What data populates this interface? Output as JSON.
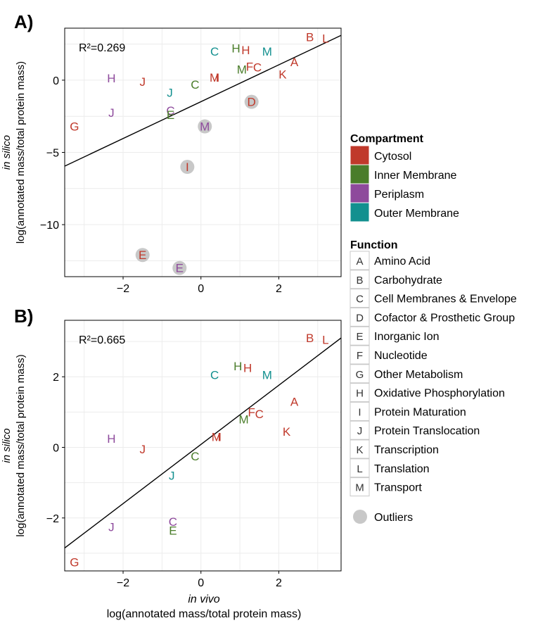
{
  "colors": {
    "Cytosol": "#c0392b",
    "Inner Membrane": "#4a7d2a",
    "Periplasm": "#8e4a9c",
    "Outer Membrane": "#13908f",
    "outlier": "#c8c8c8",
    "panel_bg": "#ffffff",
    "grid": "#ececec",
    "fit_line": "#000000"
  },
  "axes": {
    "x_label_italic": "in vivo",
    "x_label": "log(annotated mass/total protein mass)",
    "y_label_italic": "in silico",
    "y_label": "log(annotated mass/total protein mass)"
  },
  "legend": {
    "compartment_title": "Compartment",
    "compartments": [
      "Cytosol",
      "Inner Membrane",
      "Periplasm",
      "Outer Membrane"
    ],
    "function_title": "Function",
    "functions": [
      {
        "code": "A",
        "name": "Amino Acid"
      },
      {
        "code": "B",
        "name": "Carbohydrate"
      },
      {
        "code": "C",
        "name": "Cell Membranes & Envelope"
      },
      {
        "code": "D",
        "name": "Cofactor & Prosthetic Group"
      },
      {
        "code": "E",
        "name": "Inorganic Ion"
      },
      {
        "code": "F",
        "name": "Nucleotide"
      },
      {
        "code": "G",
        "name": "Other Metabolism"
      },
      {
        "code": "H",
        "name": "Oxidative Phosphorylation"
      },
      {
        "code": "I",
        "name": "Protein Maturation"
      },
      {
        "code": "J",
        "name": "Protein Translocation"
      },
      {
        "code": "K",
        "name": "Transcription"
      },
      {
        "code": "L",
        "name": "Translation"
      },
      {
        "code": "M",
        "name": "Transport"
      }
    ],
    "outlier_label": "Outliers"
  },
  "chart_data": [
    {
      "type": "scatter",
      "panel_label": "A)",
      "r2_label": "R²=0.269",
      "xlim": [
        -3.5,
        3.6
      ],
      "ylim": [
        -13.6,
        3.6
      ],
      "xticks": [
        -2,
        0,
        2
      ],
      "yticks": [
        0,
        -5,
        -10
      ],
      "fit_line": [
        [
          -3.5,
          -5.95
        ],
        [
          3.6,
          3.1
        ]
      ],
      "points": [
        {
          "label": "B",
          "compartment": "Cytosol",
          "x": 2.8,
          "y": 3.0,
          "outlier": false
        },
        {
          "label": "L",
          "compartment": "Cytosol",
          "x": 3.2,
          "y": 2.9,
          "outlier": false
        },
        {
          "label": "C",
          "compartment": "Outer Membrane",
          "x": 0.35,
          "y": 2.0,
          "outlier": false
        },
        {
          "label": "H",
          "compartment": "Inner Membrane",
          "x": 0.9,
          "y": 2.2,
          "outlier": false
        },
        {
          "label": "H",
          "compartment": "Cytosol",
          "x": 1.15,
          "y": 2.1,
          "outlier": false
        },
        {
          "label": "M",
          "compartment": "Outer Membrane",
          "x": 1.7,
          "y": 2.0,
          "outlier": false
        },
        {
          "label": "A",
          "compartment": "Cytosol",
          "x": 2.4,
          "y": 1.25,
          "outlier": false
        },
        {
          "label": "F",
          "compartment": "Cytosol",
          "x": 1.25,
          "y": 0.95,
          "outlier": false
        },
        {
          "label": "C",
          "compartment": "Cytosol",
          "x": 1.45,
          "y": 0.9,
          "outlier": false
        },
        {
          "label": "M",
          "compartment": "Inner Membrane",
          "x": 1.05,
          "y": 0.75,
          "outlier": false
        },
        {
          "label": "K",
          "compartment": "Cytosol",
          "x": 2.1,
          "y": 0.4,
          "outlier": false
        },
        {
          "label": "M",
          "compartment": "Cytosol",
          "x": 0.35,
          "y": 0.2,
          "outlier": false
        },
        {
          "label": "I",
          "compartment": "Cytosol",
          "x": 0.42,
          "y": 0.2,
          "outlier": false
        },
        {
          "label": "H",
          "compartment": "Periplasm",
          "x": -2.3,
          "y": 0.15,
          "outlier": false
        },
        {
          "label": "J",
          "compartment": "Cytosol",
          "x": -1.5,
          "y": -0.1,
          "outlier": false
        },
        {
          "label": "C",
          "compartment": "Inner Membrane",
          "x": -0.15,
          "y": -0.3,
          "outlier": false
        },
        {
          "label": "J",
          "compartment": "Outer Membrane",
          "x": -0.8,
          "y": -0.85,
          "outlier": false
        },
        {
          "label": "D",
          "compartment": "Cytosol",
          "x": 1.3,
          "y": -1.5,
          "outlier": true
        },
        {
          "label": "C",
          "compartment": "Periplasm",
          "x": -0.78,
          "y": -2.1,
          "outlier": false
        },
        {
          "label": "E",
          "compartment": "Inner Membrane",
          "x": -0.78,
          "y": -2.4,
          "outlier": false
        },
        {
          "label": "J",
          "compartment": "Periplasm",
          "x": -2.3,
          "y": -2.25,
          "outlier": false
        },
        {
          "label": "M",
          "compartment": "Periplasm",
          "x": 0.1,
          "y": -3.2,
          "outlier": true
        },
        {
          "label": "G",
          "compartment": "Cytosol",
          "x": -3.25,
          "y": -3.2,
          "outlier": false
        },
        {
          "label": "I",
          "compartment": "Cytosol",
          "x": -0.35,
          "y": -6.0,
          "outlier": true
        },
        {
          "label": "E",
          "compartment": "Cytosol",
          "x": -1.5,
          "y": -12.1,
          "outlier": true
        },
        {
          "label": "E",
          "compartment": "Periplasm",
          "x": -0.55,
          "y": -13.0,
          "outlier": true
        }
      ]
    },
    {
      "type": "scatter",
      "panel_label": "B)",
      "r2_label": "R²=0.665",
      "xlim": [
        -3.5,
        3.6
      ],
      "ylim": [
        -3.5,
        3.6
      ],
      "xticks": [
        -2,
        0,
        2
      ],
      "yticks": [
        2,
        0,
        -2
      ],
      "fit_line": [
        [
          -3.5,
          -2.85
        ],
        [
          3.6,
          3.1
        ]
      ],
      "points": [
        {
          "label": "B",
          "compartment": "Cytosol",
          "x": 2.8,
          "y": 3.1
        },
        {
          "label": "L",
          "compartment": "Cytosol",
          "x": 3.2,
          "y": 3.05
        },
        {
          "label": "C",
          "compartment": "Outer Membrane",
          "x": 0.35,
          "y": 2.05
        },
        {
          "label": "H",
          "compartment": "Inner Membrane",
          "x": 0.95,
          "y": 2.3
        },
        {
          "label": "H",
          "compartment": "Cytosol",
          "x": 1.2,
          "y": 2.25
        },
        {
          "label": "M",
          "compartment": "Outer Membrane",
          "x": 1.7,
          "y": 2.05
        },
        {
          "label": "A",
          "compartment": "Cytosol",
          "x": 2.4,
          "y": 1.3
        },
        {
          "label": "F",
          "compartment": "Cytosol",
          "x": 1.3,
          "y": 1.0
        },
        {
          "label": "C",
          "compartment": "Cytosol",
          "x": 1.5,
          "y": 0.95
        },
        {
          "label": "M",
          "compartment": "Inner Membrane",
          "x": 1.1,
          "y": 0.8
        },
        {
          "label": "K",
          "compartment": "Cytosol",
          "x": 2.2,
          "y": 0.45
        },
        {
          "label": "M",
          "compartment": "Cytosol",
          "x": 0.4,
          "y": 0.3
        },
        {
          "label": "I",
          "compartment": "Cytosol",
          "x": 0.47,
          "y": 0.3
        },
        {
          "label": "H",
          "compartment": "Periplasm",
          "x": -2.3,
          "y": 0.25
        },
        {
          "label": "J",
          "compartment": "Cytosol",
          "x": -1.5,
          "y": -0.05
        },
        {
          "label": "C",
          "compartment": "Inner Membrane",
          "x": -0.15,
          "y": -0.25
        },
        {
          "label": "J",
          "compartment": "Outer Membrane",
          "x": -0.75,
          "y": -0.8
        },
        {
          "label": "C",
          "compartment": "Periplasm",
          "x": -0.72,
          "y": -2.1
        },
        {
          "label": "E",
          "compartment": "Inner Membrane",
          "x": -0.72,
          "y": -2.35
        },
        {
          "label": "J",
          "compartment": "Periplasm",
          "x": -2.3,
          "y": -2.25
        },
        {
          "label": "G",
          "compartment": "Cytosol",
          "x": -3.25,
          "y": -3.25
        }
      ]
    }
  ]
}
